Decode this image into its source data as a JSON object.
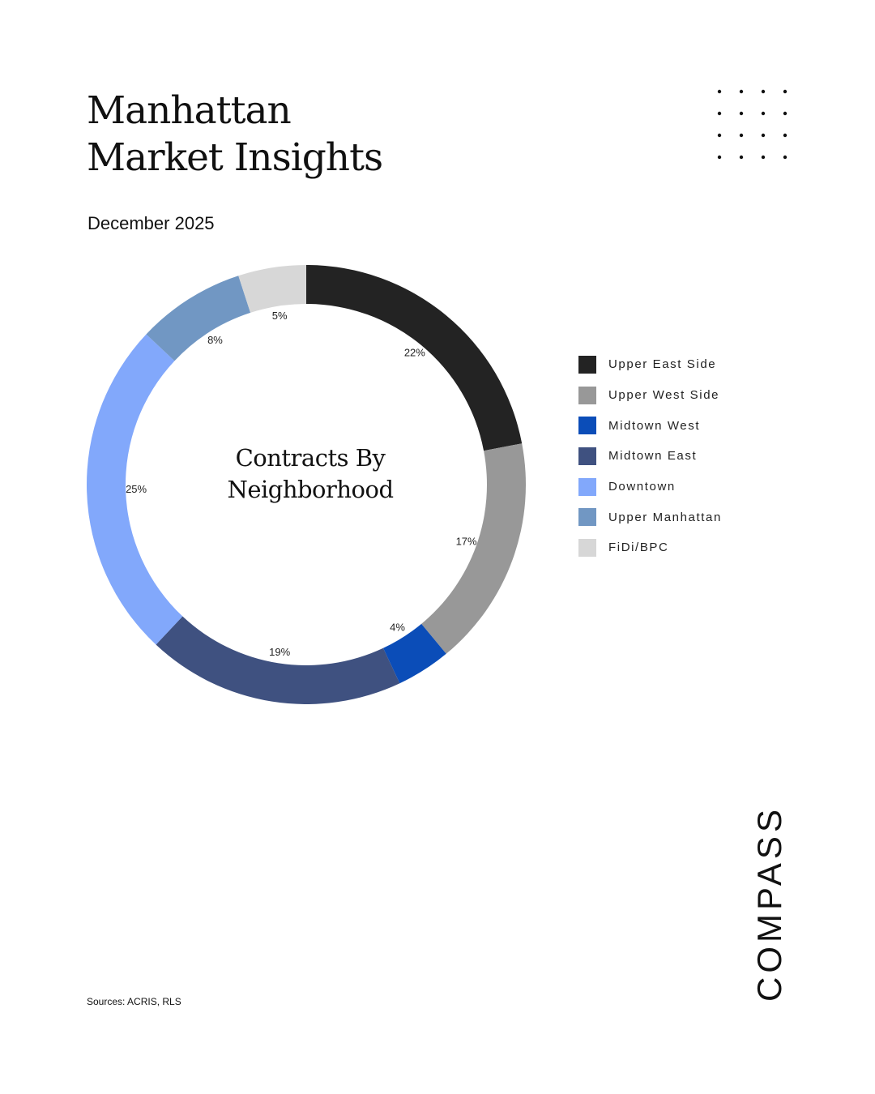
{
  "header": {
    "title_line1": "Manhattan",
    "title_line2": "Market Insights",
    "subtitle": "December 2025"
  },
  "chart_data": {
    "type": "pie",
    "title": "Contracts By Neighborhood",
    "title_line1": "Contracts By",
    "title_line2": "Neighborhood",
    "legend_position": "right",
    "categories": [
      "Upper East Side",
      "Upper West Side",
      "Midtown West",
      "Midtown East",
      "Downtown",
      "Upper Manhattan",
      "FiDi/BPC"
    ],
    "values": [
      22,
      17,
      4,
      19,
      25,
      8,
      5
    ],
    "value_labels": [
      "22%",
      "17%",
      "4%",
      "19%",
      "25%",
      "8%",
      "5%"
    ],
    "colors": [
      "#232323",
      "#989898",
      "#0b4db8",
      "#3f5180",
      "#82a8fb",
      "#7197c3",
      "#d7d7d7"
    ]
  },
  "footer": {
    "sources": "Sources: ACRIS, RLS"
  },
  "brand": {
    "logo_text": "COMPASS"
  }
}
